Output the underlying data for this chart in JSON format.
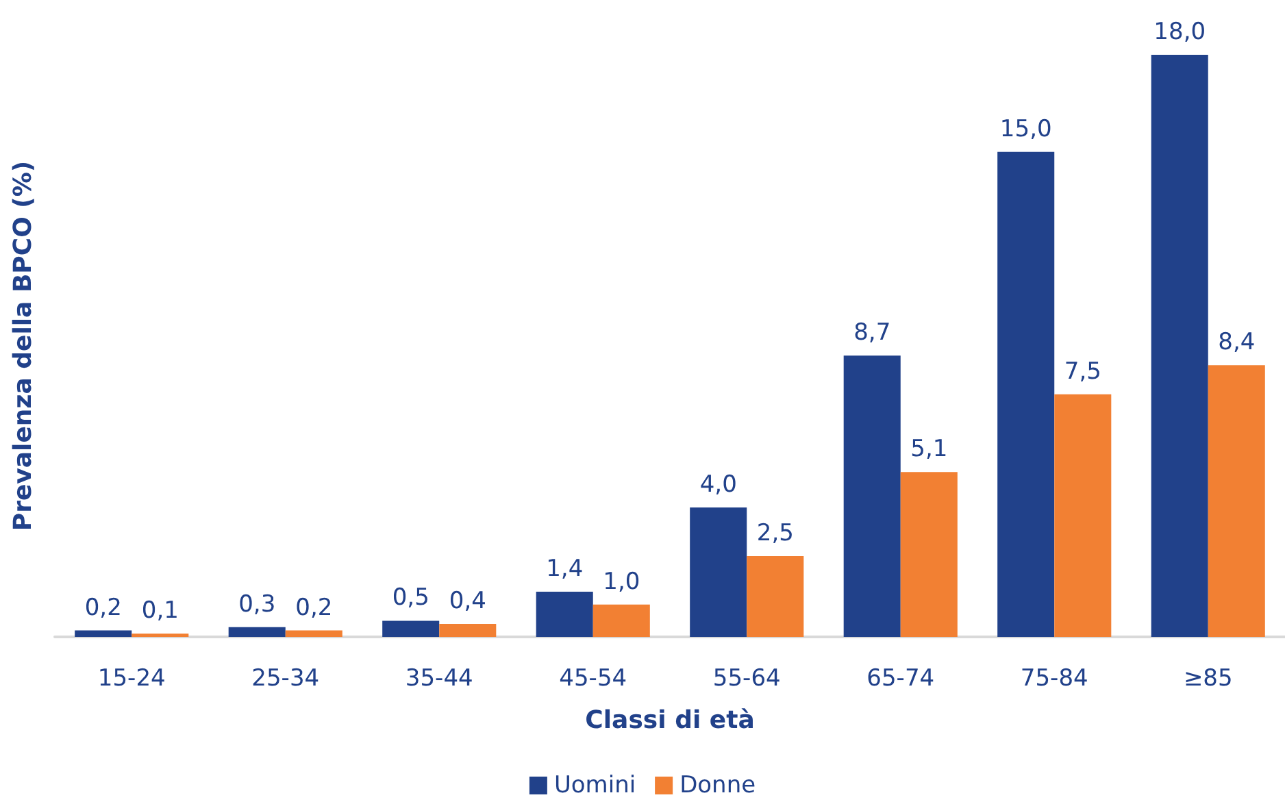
{
  "chart_data": {
    "type": "bar",
    "xlabel": "Classi di età",
    "ylabel": "Prevalenza della BPCO (%)",
    "categories": [
      "15-24",
      "25-34",
      "35-44",
      "45-54",
      "55-64",
      "65-74",
      "75-84",
      "≥85"
    ],
    "series": [
      {
        "name": "Uomini",
        "color": "#21418a",
        "values": [
          0.2,
          0.3,
          0.5,
          1.4,
          4.0,
          8.7,
          15.0,
          18.0
        ],
        "value_labels": [
          "0,2",
          "0,3",
          "0,5",
          "1,4",
          "4,0",
          "8,7",
          "15,0",
          "18,0"
        ]
      },
      {
        "name": "Donne",
        "color": "#f28033",
        "values": [
          0.1,
          0.2,
          0.4,
          1.0,
          2.5,
          5.1,
          7.5,
          8.4
        ],
        "value_labels": [
          "0,1",
          "0,2",
          "0,4",
          "1,0",
          "2,5",
          "5,1",
          "7,5",
          "8,4"
        ]
      }
    ],
    "legend": "bottom",
    "tick_labels": "x"
  }
}
